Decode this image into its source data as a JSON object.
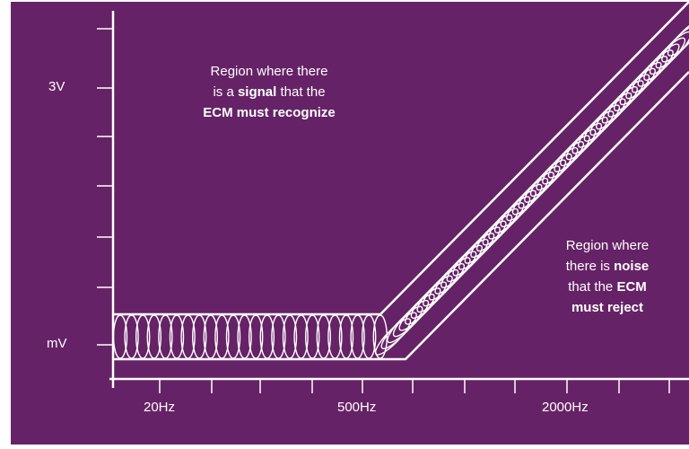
{
  "colors": {
    "background": "#662266",
    "foreground": "#ffffff"
  },
  "y_axis": {
    "ticks": [
      "3V",
      "mV"
    ]
  },
  "x_axis": {
    "ticks": [
      "20Hz",
      "500Hz",
      "2000Hz"
    ]
  },
  "signal_region": {
    "lines": [
      [
        {
          "text": "Region where there",
          "bold": false
        }
      ],
      [
        {
          "text": "is a ",
          "bold": false
        },
        {
          "text": "signal",
          "bold": true
        },
        {
          "text": " that the",
          "bold": false
        }
      ],
      [
        {
          "text": "ECM must recognize",
          "bold": true
        }
      ]
    ]
  },
  "noise_region": {
    "lines": [
      [
        {
          "text": "Region where",
          "bold": false
        }
      ],
      [
        {
          "text": "there is ",
          "bold": false
        },
        {
          "text": "noise",
          "bold": true
        }
      ],
      [
        {
          "text": "that the ",
          "bold": false
        },
        {
          "text": "ECM",
          "bold": true
        }
      ],
      [
        {
          "text": "must reject",
          "bold": true
        }
      ]
    ]
  }
}
